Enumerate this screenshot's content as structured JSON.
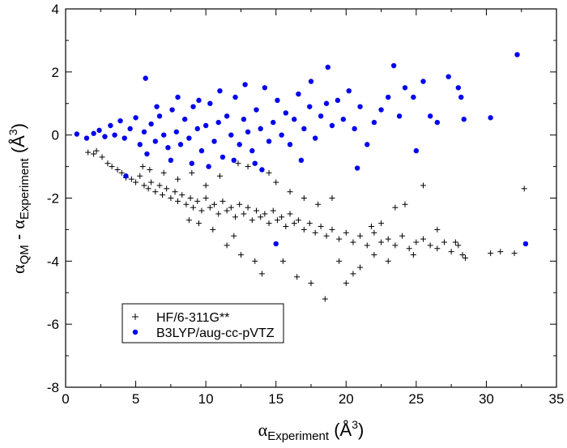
{
  "chart_data": {
    "type": "scatter",
    "xlabel": {
      "symbol": "α",
      "sub": "Experiment",
      "unit_pre": " (Å",
      "unit_sup": "3",
      "unit_post": ")"
    },
    "ylabel": {
      "symbol1": "α",
      "sub1": "QM",
      "mid": " - ",
      "symbol2": "α",
      "sub2": "Experiment",
      "unit_pre": " (Å",
      "unit_sup": "3",
      "unit_post": ")"
    },
    "xlim": [
      0,
      35
    ],
    "ylim": [
      -8,
      4
    ],
    "xticks": [
      0,
      5,
      10,
      15,
      20,
      25,
      30,
      35
    ],
    "yticks": [
      -8,
      -6,
      -4,
      -2,
      0,
      2,
      4
    ],
    "legend_position": "bottom-left",
    "colors": {
      "hf": "#000000",
      "b3lyp": "#0000ee"
    },
    "series": [
      {
        "name": "HF/6-311G**",
        "marker": "plus",
        "points": [
          [
            1.6,
            -0.55
          ],
          [
            2.0,
            -0.6
          ],
          [
            2.2,
            -0.5
          ],
          [
            2.6,
            -0.7
          ],
          [
            3.0,
            -0.9
          ],
          [
            3.3,
            -1.0
          ],
          [
            3.7,
            -1.1
          ],
          [
            4.0,
            -1.2
          ],
          [
            4.3,
            -1.35
          ],
          [
            4.7,
            -1.4
          ],
          [
            5.0,
            -1.5
          ],
          [
            5.3,
            -1.3
          ],
          [
            5.6,
            -1.6
          ],
          [
            5.9,
            -1.7
          ],
          [
            6.1,
            -1.5
          ],
          [
            6.4,
            -1.8
          ],
          [
            6.7,
            -1.6
          ],
          [
            6.9,
            -1.9
          ],
          [
            7.2,
            -1.7
          ],
          [
            7.5,
            -2.0
          ],
          [
            7.8,
            -1.8
          ],
          [
            8.0,
            -2.1
          ],
          [
            8.3,
            -1.9
          ],
          [
            8.6,
            -2.2
          ],
          [
            8.9,
            -2.0
          ],
          [
            9.1,
            -2.3
          ],
          [
            9.4,
            -2.1
          ],
          [
            9.7,
            -2.4
          ],
          [
            10.0,
            -2.0
          ],
          [
            10.3,
            -2.3
          ],
          [
            10.6,
            -2.2
          ],
          [
            10.9,
            -2.5
          ],
          [
            11.2,
            -2.1
          ],
          [
            11.5,
            -2.4
          ],
          [
            11.8,
            -2.3
          ],
          [
            12.1,
            -2.6
          ],
          [
            12.4,
            -2.2
          ],
          [
            12.7,
            -2.5
          ],
          [
            13.0,
            -2.3
          ],
          [
            13.3,
            -2.7
          ],
          [
            13.6,
            -2.4
          ],
          [
            13.9,
            -2.6
          ],
          [
            14.2,
            -2.5
          ],
          [
            14.5,
            -2.8
          ],
          [
            14.8,
            -2.4
          ],
          [
            15.1,
            -2.7
          ],
          [
            15.4,
            -2.6
          ],
          [
            15.7,
            -2.9
          ],
          [
            16.0,
            -2.5
          ],
          [
            16.3,
            -2.8
          ],
          [
            16.6,
            -2.7
          ],
          [
            17.0,
            -3.0
          ],
          [
            17.4,
            -2.8
          ],
          [
            17.8,
            -3.1
          ],
          [
            18.2,
            -2.9
          ],
          [
            18.6,
            -3.2
          ],
          [
            19.0,
            -3.0
          ],
          [
            19.5,
            -3.3
          ],
          [
            20.0,
            -3.1
          ],
          [
            20.5,
            -3.4
          ],
          [
            21.0,
            -3.2
          ],
          [
            21.5,
            -3.5
          ],
          [
            22.0,
            -3.1
          ],
          [
            22.5,
            -3.4
          ],
          [
            23.0,
            -3.3
          ],
          [
            23.5,
            -3.5
          ],
          [
            24.0,
            -3.2
          ],
          [
            24.5,
            -3.6
          ],
          [
            25.0,
            -3.4
          ],
          [
            25.5,
            -3.3
          ],
          [
            26.0,
            -3.5
          ],
          [
            26.5,
            -3.6
          ],
          [
            27.0,
            -3.4
          ],
          [
            27.5,
            -3.7
          ],
          [
            28.0,
            -3.5
          ],
          [
            28.3,
            -3.8
          ],
          [
            30.3,
            -3.75
          ],
          [
            31.0,
            -3.7
          ],
          [
            32.0,
            -3.75
          ],
          [
            32.7,
            -1.7
          ],
          [
            23.5,
            -2.3
          ],
          [
            25.5,
            -1.6
          ],
          [
            24.2,
            -2.2
          ],
          [
            19.0,
            -2.0
          ],
          [
            20.0,
            -4.7
          ],
          [
            18.5,
            -5.2
          ],
          [
            17.5,
            -4.7
          ],
          [
            16.5,
            -4.5
          ],
          [
            19.5,
            -4.0
          ],
          [
            21.0,
            -4.2
          ],
          [
            14.0,
            -4.4
          ],
          [
            13.5,
            -4.0
          ],
          [
            12.5,
            -3.8
          ],
          [
            15.5,
            -4.0
          ],
          [
            11.5,
            -3.5
          ],
          [
            12.0,
            -3.2
          ],
          [
            10.5,
            -3.0
          ],
          [
            9.5,
            -2.8
          ],
          [
            8.8,
            -2.7
          ],
          [
            13.0,
            -1.0
          ],
          [
            12.3,
            -0.9
          ],
          [
            14.5,
            -1.2
          ],
          [
            11.0,
            -1.3
          ],
          [
            15.0,
            -1.5
          ],
          [
            9.0,
            -1.2
          ],
          [
            8.0,
            -1.4
          ],
          [
            7.0,
            -1.2
          ],
          [
            6.0,
            -1.1
          ],
          [
            5.5,
            -1.0
          ],
          [
            10.0,
            -1.6
          ],
          [
            16.0,
            -1.8
          ],
          [
            17.0,
            -2.0
          ],
          [
            18.0,
            -2.2
          ],
          [
            22.5,
            -2.8
          ],
          [
            21.8,
            -2.9
          ],
          [
            26.5,
            -3.0
          ],
          [
            27.8,
            -3.4
          ],
          [
            28.5,
            -3.9
          ],
          [
            24.8,
            -3.8
          ],
          [
            23.0,
            -4.0
          ],
          [
            22.0,
            -3.8
          ],
          [
            20.5,
            -4.4
          ]
        ]
      },
      {
        "name": "B3LYP/aug-cc-pVTZ",
        "marker": "circle",
        "points": [
          [
            0.8,
            0.03
          ],
          [
            1.5,
            -0.1
          ],
          [
            2.0,
            0.05
          ],
          [
            2.4,
            0.15
          ],
          [
            2.8,
            -0.05
          ],
          [
            3.2,
            0.3
          ],
          [
            3.5,
            0.0
          ],
          [
            3.9,
            0.45
          ],
          [
            4.2,
            -0.1
          ],
          [
            4.6,
            0.2
          ],
          [
            5.0,
            0.55
          ],
          [
            5.3,
            -0.3
          ],
          [
            5.6,
            0.1
          ],
          [
            5.7,
            1.8
          ],
          [
            5.8,
            -0.6
          ],
          [
            6.1,
            0.35
          ],
          [
            6.4,
            -0.2
          ],
          [
            6.7,
            0.6
          ],
          [
            7.0,
            0.0
          ],
          [
            7.3,
            -0.4
          ],
          [
            7.6,
            0.8
          ],
          [
            7.9,
            0.1
          ],
          [
            8.2,
            -0.3
          ],
          [
            8.5,
            0.5
          ],
          [
            8.8,
            -0.1
          ],
          [
            9.1,
            0.9
          ],
          [
            9.4,
            0.2
          ],
          [
            9.7,
            -0.5
          ],
          [
            10.0,
            0.3
          ],
          [
            10.3,
            1.0
          ],
          [
            10.6,
            -0.2
          ],
          [
            10.9,
            0.4
          ],
          [
            11.2,
            -0.7
          ],
          [
            11.5,
            0.6
          ],
          [
            11.8,
            0.0
          ],
          [
            12.1,
            1.2
          ],
          [
            12.4,
            -0.3
          ],
          [
            12.7,
            0.5
          ],
          [
            13.0,
            0.1
          ],
          [
            13.3,
            -0.5
          ],
          [
            13.6,
            0.8
          ],
          [
            13.9,
            0.2
          ],
          [
            14.2,
            1.5
          ],
          [
            14.5,
            -0.2
          ],
          [
            14.8,
            0.4
          ],
          [
            15.1,
            1.1
          ],
          [
            15.4,
            0.0
          ],
          [
            15.7,
            0.7
          ],
          [
            16.0,
            -0.3
          ],
          [
            16.3,
            0.5
          ],
          [
            16.6,
            1.3
          ],
          [
            17.0,
            0.2
          ],
          [
            17.4,
            0.9
          ],
          [
            17.8,
            -0.1
          ],
          [
            18.2,
            0.6
          ],
          [
            18.6,
            1.0
          ],
          [
            18.7,
            2.15
          ],
          [
            19.0,
            0.3
          ],
          [
            19.4,
            1.1
          ],
          [
            19.8,
            0.5
          ],
          [
            20.2,
            1.4
          ],
          [
            20.6,
            0.2
          ],
          [
            20.8,
            -1.05
          ],
          [
            21.0,
            0.9
          ],
          [
            21.5,
            -0.3
          ],
          [
            22.0,
            0.4
          ],
          [
            22.5,
            0.8
          ],
          [
            23.0,
            1.2
          ],
          [
            23.4,
            2.2
          ],
          [
            23.8,
            0.6
          ],
          [
            24.2,
            1.5
          ],
          [
            24.8,
            1.2
          ],
          [
            25.0,
            -0.5
          ],
          [
            25.5,
            1.7
          ],
          [
            26.0,
            0.6
          ],
          [
            26.5,
            0.4
          ],
          [
            27.3,
            1.85
          ],
          [
            28.0,
            1.5
          ],
          [
            28.2,
            1.2
          ],
          [
            28.4,
            0.5
          ],
          [
            30.3,
            0.55
          ],
          [
            32.2,
            2.55
          ],
          [
            32.8,
            -3.45
          ],
          [
            15.0,
            -3.45
          ],
          [
            4.3,
            -1.3
          ],
          [
            9.5,
            1.1
          ],
          [
            11.0,
            1.4
          ],
          [
            12.8,
            1.6
          ],
          [
            14.0,
            -1.1
          ],
          [
            10.2,
            -1.0
          ],
          [
            8.0,
            1.2
          ],
          [
            6.5,
            0.9
          ],
          [
            7.5,
            -0.8
          ],
          [
            16.8,
            -0.8
          ],
          [
            17.5,
            1.7
          ],
          [
            13.5,
            -0.9
          ],
          [
            12.0,
            -0.8
          ],
          [
            9.0,
            -0.9
          ]
        ]
      }
    ]
  }
}
